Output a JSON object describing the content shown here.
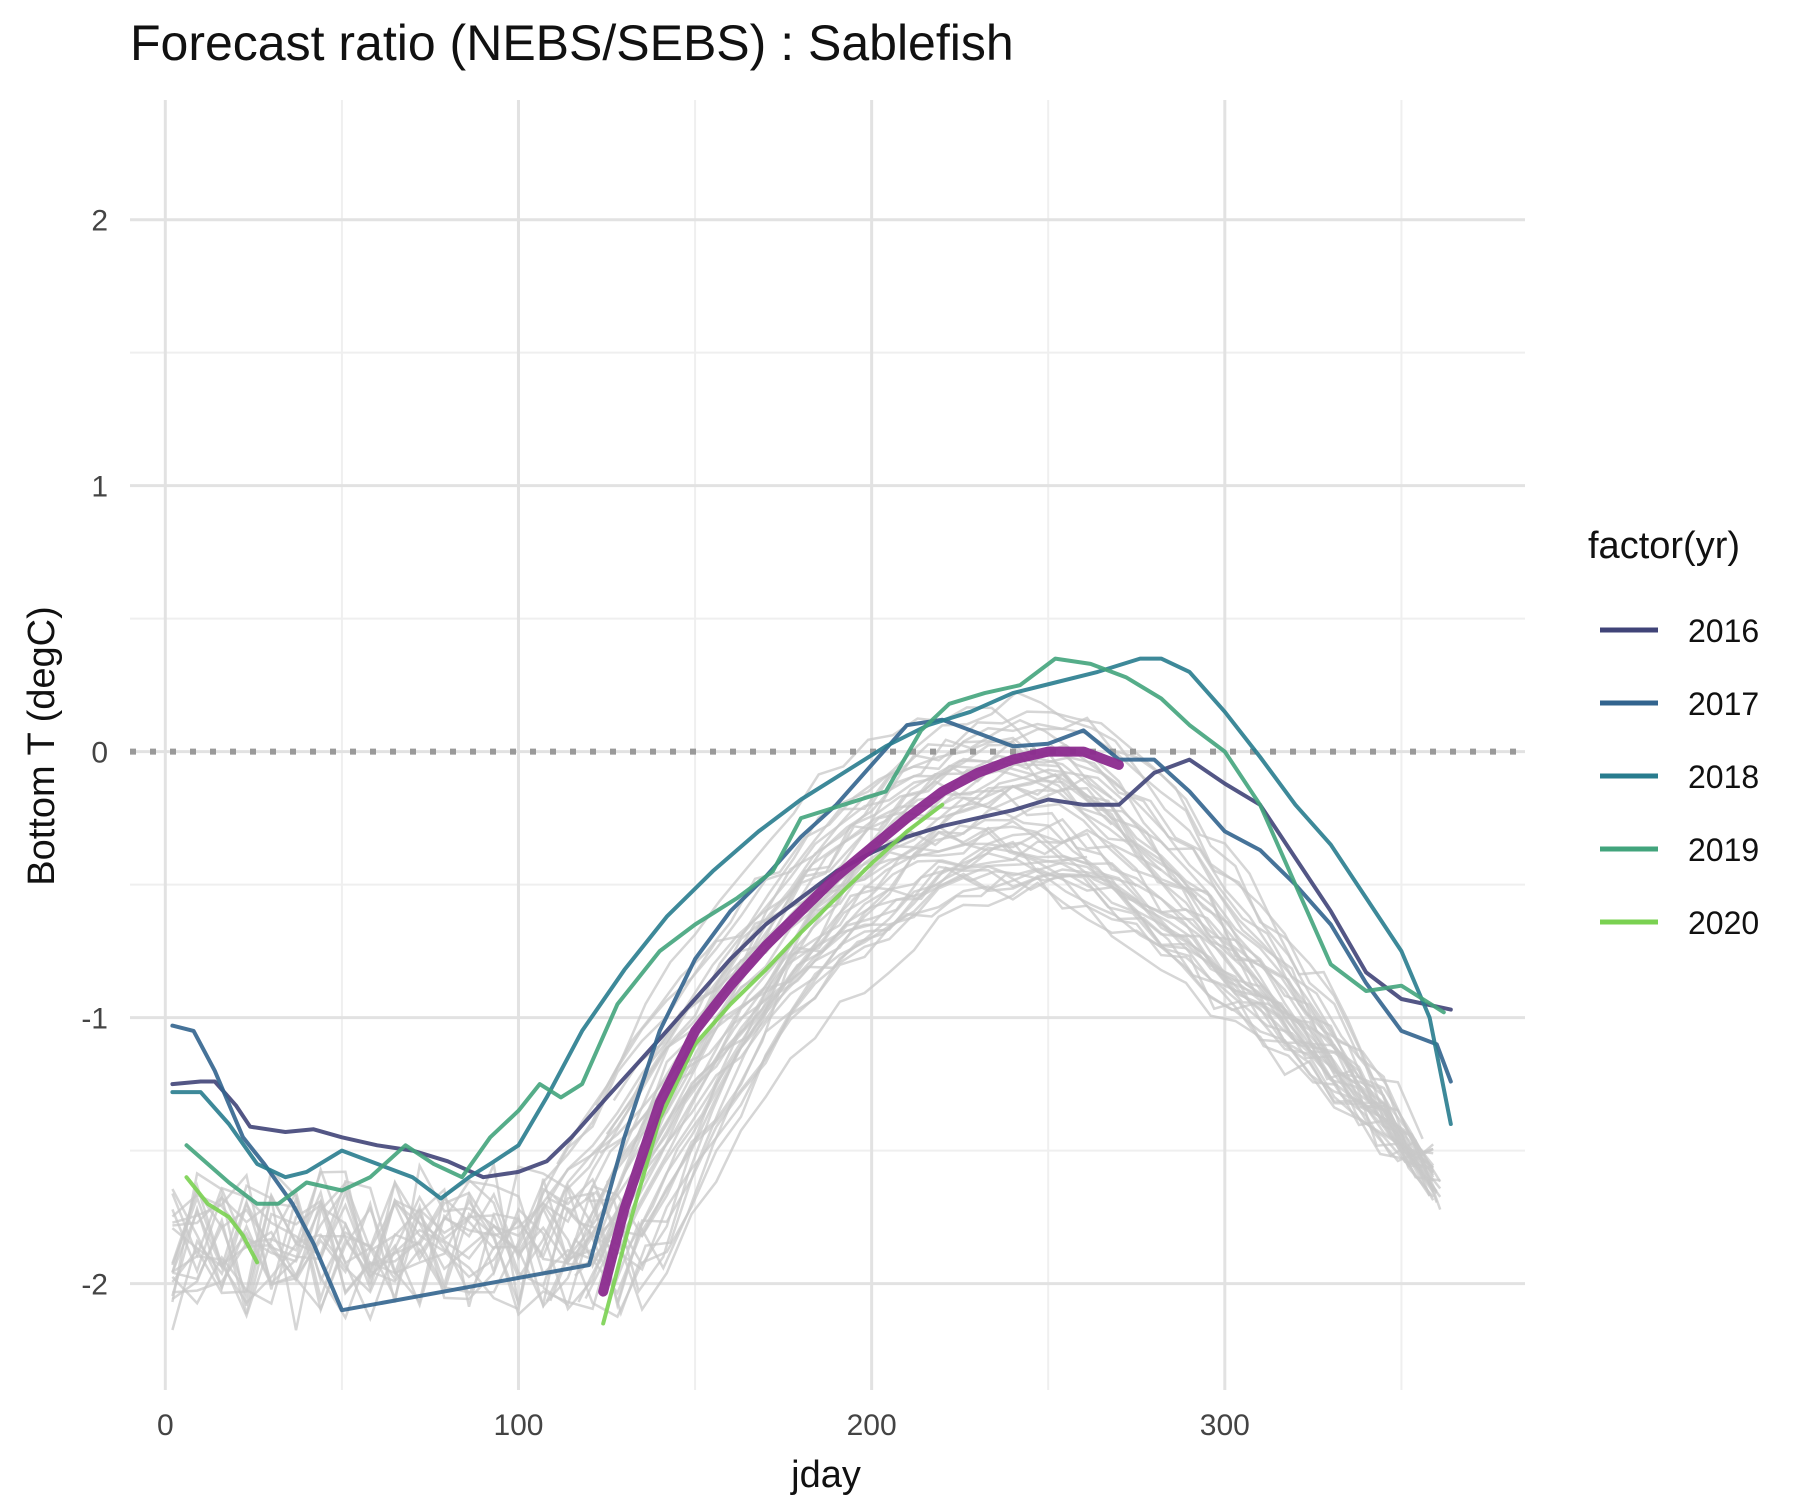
{
  "chart_data": {
    "type": "line",
    "title": "Forecast ratio (NEBS/SEBS) : Sablefish",
    "xlabel": "jday",
    "ylabel": "Bottom T (degC)",
    "xlim": [
      -10,
      385
    ],
    "ylim": [
      -2.4,
      2.45
    ],
    "x_ticks": [
      0,
      100,
      200,
      300
    ],
    "y_ticks": [
      -2,
      -1,
      0,
      1,
      2
    ],
    "grid": true,
    "reference_line": {
      "y": 0,
      "style": "dotted",
      "color": "#999999"
    },
    "legend": {
      "title": "factor(yr)",
      "position": "right"
    },
    "series": [
      {
        "name": "2016",
        "color": "#404478",
        "x": [
          2,
          10,
          14,
          20,
          24,
          34,
          42,
          50,
          60,
          70,
          80,
          90,
          100,
          108,
          115,
          125,
          140,
          150,
          160,
          170,
          180,
          190,
          200,
          210,
          220,
          230,
          240,
          250,
          260,
          270,
          280,
          290,
          300,
          310,
          320,
          330,
          340,
          350,
          364
        ],
        "y": [
          -1.25,
          -1.24,
          -1.24,
          -1.33,
          -1.41,
          -1.43,
          -1.42,
          -1.45,
          -1.48,
          -1.5,
          -1.54,
          -1.6,
          -1.58,
          -1.54,
          -1.45,
          -1.3,
          -1.08,
          -0.93,
          -0.78,
          -0.65,
          -0.55,
          -0.45,
          -0.38,
          -0.32,
          -0.28,
          -0.25,
          -0.22,
          -0.18,
          -0.2,
          -0.2,
          -0.08,
          -0.03,
          -0.12,
          -0.2,
          -0.4,
          -0.6,
          -0.83,
          -0.93,
          -0.97
        ]
      },
      {
        "name": "2017",
        "color": "#32648e",
        "x": [
          2,
          8,
          14,
          22,
          28,
          36,
          42,
          50,
          120,
          130,
          140,
          150,
          160,
          170,
          180,
          190,
          200,
          210,
          220,
          230,
          240,
          250,
          260,
          270,
          280,
          290,
          300,
          310,
          320,
          330,
          340,
          350,
          360,
          364
        ],
        "y": [
          -1.03,
          -1.05,
          -1.2,
          -1.45,
          -1.55,
          -1.7,
          -1.85,
          -2.1,
          -1.93,
          -1.45,
          -1.05,
          -0.78,
          -0.6,
          -0.47,
          -0.32,
          -0.2,
          -0.05,
          0.1,
          0.12,
          0.07,
          0.02,
          0.03,
          0.08,
          -0.03,
          -0.03,
          -0.15,
          -0.3,
          -0.37,
          -0.5,
          -0.65,
          -0.87,
          -1.05,
          -1.1,
          -1.24
        ]
      },
      {
        "name": "2018",
        "color": "#287c8e",
        "x": [
          2,
          10,
          18,
          26,
          34,
          40,
          50,
          60,
          70,
          78,
          86,
          92,
          100,
          108,
          118,
          130,
          142,
          155,
          168,
          180,
          192,
          204,
          216,
          228,
          240,
          252,
          264,
          276,
          282,
          290,
          300,
          310,
          320,
          330,
          340,
          350,
          358,
          364
        ],
        "y": [
          -1.28,
          -1.28,
          -1.4,
          -1.55,
          -1.6,
          -1.58,
          -1.5,
          -1.55,
          -1.6,
          -1.68,
          -1.6,
          -1.55,
          -1.48,
          -1.3,
          -1.05,
          -0.82,
          -0.62,
          -0.45,
          -0.3,
          -0.18,
          -0.08,
          0.02,
          0.1,
          0.15,
          0.22,
          0.26,
          0.3,
          0.35,
          0.35,
          0.3,
          0.15,
          -0.02,
          -0.2,
          -0.35,
          -0.55,
          -0.75,
          -1.0,
          -1.4
        ]
      },
      {
        "name": "2019",
        "color": "#42a47c",
        "x": [
          6,
          12,
          18,
          26,
          32,
          40,
          50,
          58,
          68,
          76,
          84,
          92,
          100,
          106,
          112,
          118,
          128,
          140,
          150,
          162,
          172,
          180,
          192,
          204,
          214,
          222,
          232,
          242,
          252,
          262,
          272,
          282,
          290,
          300,
          310,
          320,
          330,
          340,
          350,
          362
        ],
        "y": [
          -1.48,
          -1.55,
          -1.62,
          -1.7,
          -1.7,
          -1.62,
          -1.65,
          -1.6,
          -1.48,
          -1.55,
          -1.6,
          -1.45,
          -1.35,
          -1.25,
          -1.3,
          -1.25,
          -0.95,
          -0.75,
          -0.65,
          -0.55,
          -0.45,
          -0.25,
          -0.2,
          -0.15,
          0.08,
          0.18,
          0.22,
          0.25,
          0.35,
          0.33,
          0.28,
          0.2,
          0.1,
          0.0,
          -0.2,
          -0.5,
          -0.8,
          -0.9,
          -0.88,
          -0.98
        ]
      },
      {
        "name": "2020",
        "color": "#7ad151",
        "x": [
          6,
          12,
          18,
          22,
          26
        ],
        "y": [
          -1.6,
          -1.7,
          -1.75,
          -1.82,
          -1.92
        ]
      },
      {
        "name": "2020",
        "color": "#7ad151",
        "x": [
          124,
          132,
          140,
          150,
          160,
          170,
          180,
          190,
          200,
          210,
          220
        ],
        "y": [
          -2.15,
          -1.75,
          -1.38,
          -1.1,
          -0.95,
          -0.82,
          -0.68,
          -0.55,
          -0.42,
          -0.3,
          -0.2
        ]
      },
      {
        "name": "",
        "color": "#8b2a8e",
        "width": 10,
        "x": [
          124,
          130,
          140,
          150,
          160,
          170,
          180,
          190,
          200,
          210,
          220,
          230,
          240,
          250,
          260,
          270
        ],
        "y": [
          -2.03,
          -1.72,
          -1.32,
          -1.05,
          -0.88,
          -0.73,
          -0.6,
          -0.47,
          -0.36,
          -0.25,
          -0.15,
          -0.08,
          -0.03,
          0.0,
          0.0,
          -0.05
        ]
      }
    ],
    "background_series_count": 45,
    "background_color": "#c8c8c8"
  }
}
